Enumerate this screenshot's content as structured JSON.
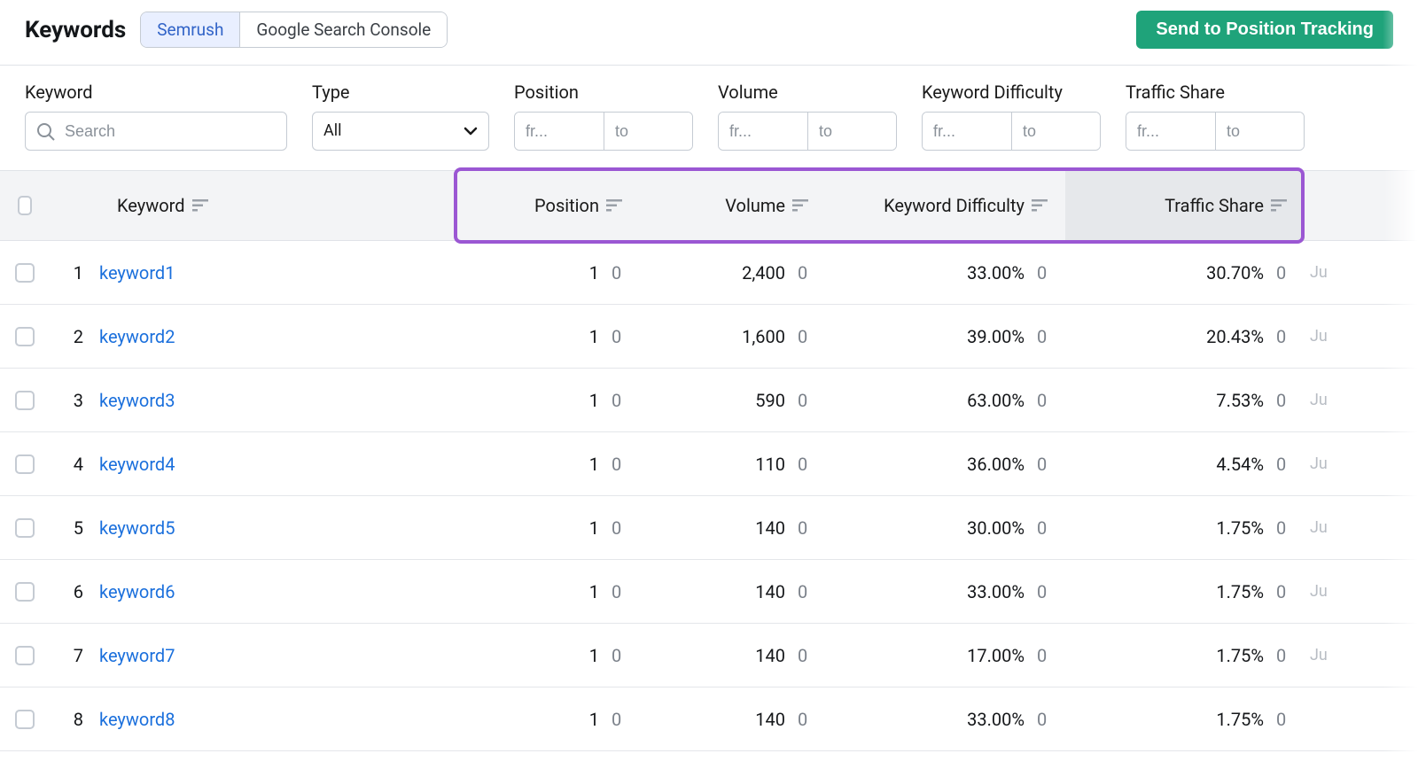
{
  "header": {
    "title": "Keywords",
    "tabs": [
      "Semrush",
      "Google Search Console"
    ],
    "active_tab": 0,
    "cta_label": "Send to Position Tracking"
  },
  "filters": {
    "keyword": {
      "label": "Keyword",
      "placeholder": "Search",
      "value": ""
    },
    "type": {
      "label": "Type",
      "value": "All"
    },
    "position": {
      "label": "Position",
      "from_ph": "fr...",
      "to_ph": "to"
    },
    "volume": {
      "label": "Volume",
      "from_ph": "fr...",
      "to_ph": "to"
    },
    "kd": {
      "label": "Keyword Difficulty",
      "from_ph": "fr...",
      "to_ph": "to"
    },
    "traffic": {
      "label": "Traffic Share",
      "from_ph": "fr...",
      "to_ph": "to"
    }
  },
  "columns": {
    "keyword": "Keyword",
    "position": "Position",
    "volume": "Volume",
    "kd": "Keyword Difficulty",
    "traffic": "Traffic Share"
  },
  "highlight_columns": [
    "position",
    "volume",
    "kd",
    "traffic"
  ],
  "highlight_color": "#9b57d3",
  "accent_color": "#1fa37a",
  "link_color": "#1a6fdc",
  "rows": [
    {
      "idx": "1",
      "keyword": "keyword1",
      "position": "1",
      "pos_d": "0",
      "volume": "2,400",
      "vol_d": "0",
      "kd": "33.00%",
      "kd_d": "0",
      "traffic": "30.70%",
      "tr_d": "0",
      "trail": "Ju"
    },
    {
      "idx": "2",
      "keyword": "keyword2",
      "position": "1",
      "pos_d": "0",
      "volume": "1,600",
      "vol_d": "0",
      "kd": "39.00%",
      "kd_d": "0",
      "traffic": "20.43%",
      "tr_d": "0",
      "trail": "Ju"
    },
    {
      "idx": "3",
      "keyword": "keyword3",
      "position": "1",
      "pos_d": "0",
      "volume": "590",
      "vol_d": "0",
      "kd": "63.00%",
      "kd_d": "0",
      "traffic": "7.53%",
      "tr_d": "0",
      "trail": "Ju"
    },
    {
      "idx": "4",
      "keyword": "keyword4",
      "position": "1",
      "pos_d": "0",
      "volume": "110",
      "vol_d": "0",
      "kd": "36.00%",
      "kd_d": "0",
      "traffic": "4.54%",
      "tr_d": "0",
      "trail": "Ju"
    },
    {
      "idx": "5",
      "keyword": "keyword5",
      "position": "1",
      "pos_d": "0",
      "volume": "140",
      "vol_d": "0",
      "kd": "30.00%",
      "kd_d": "0",
      "traffic": "1.75%",
      "tr_d": "0",
      "trail": "Ju"
    },
    {
      "idx": "6",
      "keyword": "keyword6",
      "position": "1",
      "pos_d": "0",
      "volume": "140",
      "vol_d": "0",
      "kd": "33.00%",
      "kd_d": "0",
      "traffic": "1.75%",
      "tr_d": "0",
      "trail": "Ju"
    },
    {
      "idx": "7",
      "keyword": "keyword7",
      "position": "1",
      "pos_d": "0",
      "volume": "140",
      "vol_d": "0",
      "kd": "17.00%",
      "kd_d": "0",
      "traffic": "1.75%",
      "tr_d": "0",
      "trail": "Ju"
    },
    {
      "idx": "8",
      "keyword": "keyword8",
      "position": "1",
      "pos_d": "0",
      "volume": "140",
      "vol_d": "0",
      "kd": "33.00%",
      "kd_d": "0",
      "traffic": "1.75%",
      "tr_d": "0",
      "trail": ""
    }
  ]
}
